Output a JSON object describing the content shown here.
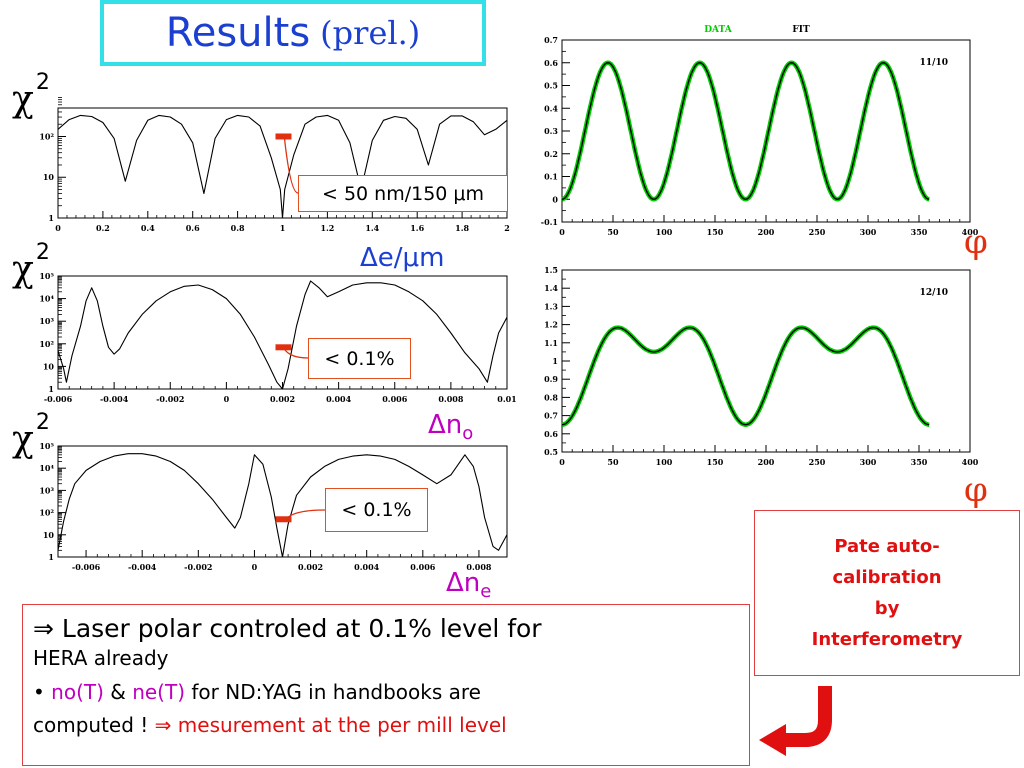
{
  "title": {
    "main": "Results",
    "sub": "(prel.)"
  },
  "chi_label": "χ",
  "chi_sup": "2",
  "left_panels": {
    "labels": [
      {
        "prefix": "Δ",
        "main": "e/μm",
        "sub": "",
        "color": "#1a3fd1"
      },
      {
        "prefix": "Δ",
        "main": "n",
        "sub": "o",
        "color": "#c000c0"
      },
      {
        "prefix": "Δ",
        "main": "n",
        "sub": "e",
        "color": "#c000c0"
      }
    ],
    "annotations": [
      "< 50 nm/150 μm",
      "< 0.1%",
      "< 0.1%"
    ]
  },
  "phi_symbol": "φ",
  "pate_box": {
    "lines": [
      "Pate auto-",
      "calibration",
      "by",
      "Interferometry"
    ]
  },
  "bottom": {
    "line1_arrow": "⇒",
    "line1_text": " Laser polar controled at 0.1% level for",
    "line2": "HERA already",
    "line3_bullet": "•",
    "line3_no": "no(T)",
    "line3_amp": " & ",
    "line3_ne": "ne(T)",
    "line3_rest": " for ND:YAG in handbooks are",
    "line4_a": "computed ! ",
    "line4_arrow": "⇒",
    "line4_b": " mesurement at the per mill level"
  },
  "chart_data": [
    {
      "type": "line",
      "title": "",
      "xlabel": "Δe/μm",
      "ylabel": "χ²",
      "yscale": "log",
      "xlim": [
        0,
        2
      ],
      "ylim": [
        1,
        500
      ],
      "xticks": [
        "0",
        "0.2",
        "0.4",
        "0.6",
        "0.8",
        "1",
        "1.2",
        "1.4",
        "1.6",
        "1.8",
        "2"
      ],
      "yticks": [
        "1",
        "10",
        "10²"
      ],
      "minimum_x": 1.0,
      "annotation": "< 50 nm/150 μm",
      "x": [
        0,
        0.05,
        0.1,
        0.15,
        0.2,
        0.25,
        0.3,
        0.35,
        0.4,
        0.45,
        0.5,
        0.55,
        0.6,
        0.65,
        0.7,
        0.75,
        0.8,
        0.85,
        0.9,
        0.95,
        0.99,
        1.0,
        1.01,
        1.05,
        1.1,
        1.15,
        1.2,
        1.25,
        1.3,
        1.35,
        1.4,
        1.45,
        1.5,
        1.55,
        1.6,
        1.65,
        1.7,
        1.75,
        1.8,
        1.85,
        1.9,
        1.95,
        2.0
      ],
      "y": [
        150,
        260,
        330,
        310,
        220,
        90,
        8,
        80,
        250,
        330,
        300,
        200,
        70,
        4,
        90,
        260,
        330,
        300,
        180,
        30,
        5,
        1,
        5,
        35,
        200,
        300,
        330,
        250,
        70,
        5,
        80,
        250,
        310,
        280,
        150,
        20,
        200,
        320,
        320,
        230,
        110,
        150,
        250
      ]
    },
    {
      "type": "line",
      "title": "",
      "xlabel": "Δn_o",
      "ylabel": "χ²",
      "yscale": "log",
      "xlim": [
        -0.006,
        0.01
      ],
      "ylim": [
        1,
        100000
      ],
      "xticks": [
        "-0.006",
        "-0.004",
        "-0.002",
        "0",
        "0.002",
        "0.004",
        "0.006",
        "0.008",
        "0.01"
      ],
      "yticks": [
        "1",
        "10",
        "10²",
        "10³",
        "10⁴",
        "10⁵"
      ],
      "minimum_x": 0.002,
      "annotation": "< 0.1%",
      "x": [
        -0.006,
        -0.0058,
        -0.0057,
        -0.0055,
        -0.0052,
        -0.005,
        -0.0048,
        -0.0046,
        -0.0044,
        -0.0042,
        -0.004,
        -0.0038,
        -0.0035,
        -0.003,
        -0.0025,
        -0.002,
        -0.0015,
        -0.001,
        -0.0005,
        0,
        0.0005,
        0.001,
        0.0015,
        0.0018,
        0.002,
        0.0022,
        0.0025,
        0.0028,
        0.003,
        0.0033,
        0.0036,
        0.004,
        0.0045,
        0.005,
        0.0055,
        0.006,
        0.0065,
        0.007,
        0.0075,
        0.008,
        0.0085,
        0.009,
        0.0093,
        0.0095,
        0.0097,
        0.01
      ],
      "y": [
        50,
        8,
        2,
        30,
        600,
        8000,
        30000,
        8000,
        600,
        70,
        35,
        60,
        300,
        2000,
        8000,
        20000,
        35000,
        40000,
        25000,
        10000,
        2000,
        200,
        12,
        2,
        1,
        8,
        600,
        15000,
        60000,
        30000,
        12000,
        20000,
        40000,
        50000,
        50000,
        40000,
        20000,
        8000,
        2000,
        300,
        40,
        8,
        2,
        30,
        300,
        1500
      ]
    },
    {
      "type": "line",
      "title": "",
      "xlabel": "Δn_e",
      "ylabel": "χ²",
      "yscale": "log",
      "xlim": [
        -0.007,
        0.009
      ],
      "ylim": [
        1,
        100000
      ],
      "xticks": [
        "-0.006",
        "-0.004",
        "-0.002",
        "0",
        "0.002",
        "0.004",
        "0.006",
        "0.008"
      ],
      "yticks": [
        "1",
        "10",
        "10²",
        "10³",
        "10⁴",
        "10⁵"
      ],
      "minimum_x": 0.001,
      "annotation": "< 0.1%",
      "x": [
        -0.007,
        -0.0068,
        -0.0066,
        -0.0064,
        -0.006,
        -0.0055,
        -0.005,
        -0.0045,
        -0.004,
        -0.0035,
        -0.003,
        -0.0025,
        -0.002,
        -0.0015,
        -0.001,
        -0.0007,
        -0.0005,
        -0.0002,
        0,
        0.0003,
        0.0006,
        0.0008,
        0.001,
        0.0012,
        0.0015,
        0.002,
        0.0025,
        0.003,
        0.0035,
        0.004,
        0.0045,
        0.005,
        0.0055,
        0.006,
        0.0065,
        0.007,
        0.0075,
        0.0078,
        0.008,
        0.0082,
        0.0085,
        0.0087,
        0.009
      ],
      "y": [
        2,
        40,
        400,
        2000,
        8000,
        20000,
        35000,
        45000,
        45000,
        35000,
        20000,
        8000,
        2000,
        400,
        60,
        20,
        60,
        2000,
        40000,
        15000,
        500,
        20,
        1,
        30,
        600,
        4000,
        12000,
        25000,
        35000,
        40000,
        35000,
        25000,
        12000,
        5000,
        2000,
        5000,
        40000,
        12000,
        1500,
        60,
        3,
        2,
        10
      ]
    },
    {
      "type": "scatter",
      "title": "",
      "legend": [
        "DATA",
        "FIT"
      ],
      "legend_colors": [
        "#00cc00",
        "#000000"
      ],
      "legend_placement": "top",
      "panel_label": "11/10",
      "xlabel": "φ",
      "xlim": [
        0,
        400
      ],
      "ylim": [
        -0.1,
        0.7
      ],
      "xticks": [
        "0",
        "50",
        "100",
        "150",
        "200",
        "250",
        "300",
        "350",
        "400"
      ],
      "yticks": [
        "-0.1",
        "0",
        "0.1",
        "0.2",
        "0.3",
        "0.4",
        "0.5",
        "0.6",
        "0.7"
      ],
      "x_range": [
        0,
        360
      ],
      "model": {
        "kind": "sin2",
        "offset": 0.0,
        "amplitude": 0.6,
        "period": 90,
        "phase": 0
      }
    },
    {
      "type": "scatter",
      "title": "",
      "legend": [],
      "panel_label": "12/10",
      "xlabel": "φ",
      "xlim": [
        0,
        400
      ],
      "ylim": [
        0.5,
        1.5
      ],
      "xticks": [
        "0",
        "50",
        "100",
        "150",
        "200",
        "250",
        "300",
        "350",
        "400"
      ],
      "yticks": [
        "0.5",
        "0.6",
        "0.7",
        "0.8",
        "0.9",
        "1",
        "1.1",
        "1.2",
        "1.3",
        "1.4",
        "1.5"
      ],
      "x_range": [
        0,
        360
      ],
      "model": {
        "kind": "two_harmonic",
        "mean": 1.0,
        "a2": 0.2,
        "a4": 0.15
      }
    }
  ],
  "colors": {
    "data": "#00cc00",
    "fit": "#000000",
    "marker": "#e03010",
    "accent": "#1a3fd1"
  }
}
